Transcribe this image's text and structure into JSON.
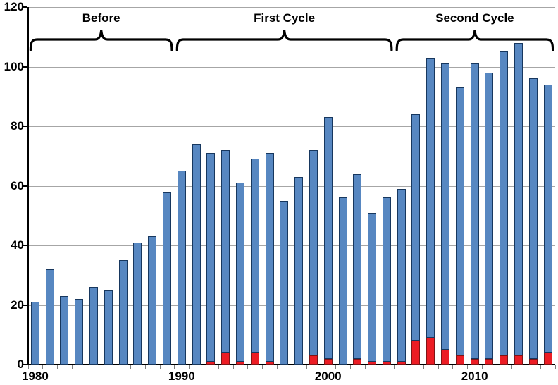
{
  "chart_data": {
    "type": "bar",
    "stacked": true,
    "title": "",
    "xlabel": "",
    "ylabel": "",
    "legend": "none",
    "grid": true,
    "ylim": [
      0,
      120
    ],
    "yticks": [
      0,
      20,
      40,
      60,
      80,
      100,
      120
    ],
    "xtick_labeled_years": [
      1980,
      1990,
      2000,
      2010
    ],
    "categories": [
      1980,
      1981,
      1982,
      1983,
      1984,
      1985,
      1986,
      1987,
      1988,
      1989,
      1990,
      1991,
      1992,
      1993,
      1994,
      1995,
      1996,
      1997,
      1998,
      1999,
      2000,
      2001,
      2002,
      2003,
      2004,
      2005,
      2006,
      2007,
      2008,
      2009,
      2010,
      2011,
      2012,
      2013,
      2014,
      2015
    ],
    "bar_totals": [
      21,
      32,
      23,
      22,
      26,
      25,
      35,
      41,
      43,
      58,
      65,
      74,
      71,
      72,
      61,
      69,
      71,
      55,
      63,
      72,
      83,
      56,
      64,
      51,
      56,
      59,
      84,
      103,
      101,
      93,
      101,
      98,
      105,
      108,
      96,
      94
    ],
    "series": [
      {
        "name": "red-bottom-segment",
        "color": "#ec1c24",
        "border_color": "#7e1416",
        "values": [
          0,
          0,
          0,
          0,
          0,
          0,
          0,
          0,
          0,
          0,
          0,
          0,
          1,
          4,
          1,
          4,
          1,
          0,
          0,
          3,
          2,
          0,
          2,
          1,
          1,
          1,
          8,
          9,
          5,
          3,
          2,
          2,
          3,
          3,
          2,
          4
        ]
      },
      {
        "name": "blue-upper-segment",
        "color": "#5787c1",
        "border_color": "#17375e",
        "note": "blue segment height = bar_total - red segment"
      }
    ],
    "annotations": [
      {
        "label": "Before",
        "start_year": 1980,
        "end_year": 1989
      },
      {
        "label": "First Cycle",
        "start_year": 1990,
        "end_year": 2004
      },
      {
        "label": "Second Cycle",
        "start_year": 2005,
        "end_year": 2015
      }
    ],
    "colors": {
      "blue_fill": "#5787c1",
      "blue_border": "#17375e",
      "red_fill": "#ec1c24",
      "red_border": "#7e1416",
      "gridline": "#a6a6a6",
      "axis": "#000000",
      "background": "#ffffff"
    }
  }
}
